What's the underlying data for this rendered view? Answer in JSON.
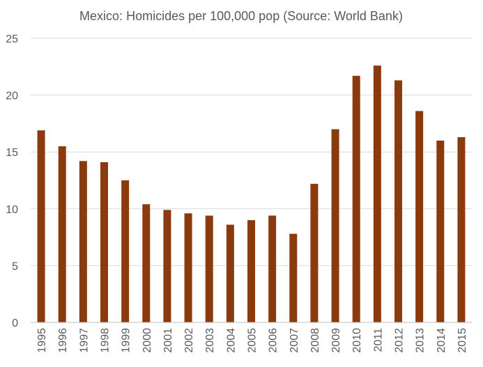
{
  "chart_data": {
    "type": "bar",
    "title": "Mexico: Homicides per 100,000 pop (Source: World Bank)",
    "xlabel": "",
    "ylabel": "",
    "ylim": [
      0,
      25
    ],
    "yticks": [
      "0",
      "5",
      "10",
      "15",
      "20",
      "25"
    ],
    "grid": true,
    "legend": "none",
    "bar_color": "#8B3A0E",
    "categories": [
      "1995",
      "1996",
      "1997",
      "1998",
      "1999",
      "2000",
      "2001",
      "2002",
      "2003",
      "2004",
      "2005",
      "2006",
      "2007",
      "2008",
      "2009",
      "2010",
      "2011",
      "2012",
      "2013",
      "2014",
      "2015"
    ],
    "values": [
      16.9,
      15.5,
      14.2,
      14.1,
      12.5,
      10.4,
      9.9,
      9.6,
      9.4,
      8.6,
      9.0,
      9.4,
      7.8,
      12.2,
      17.0,
      21.7,
      22.6,
      21.3,
      18.6,
      16.0,
      16.3
    ]
  }
}
